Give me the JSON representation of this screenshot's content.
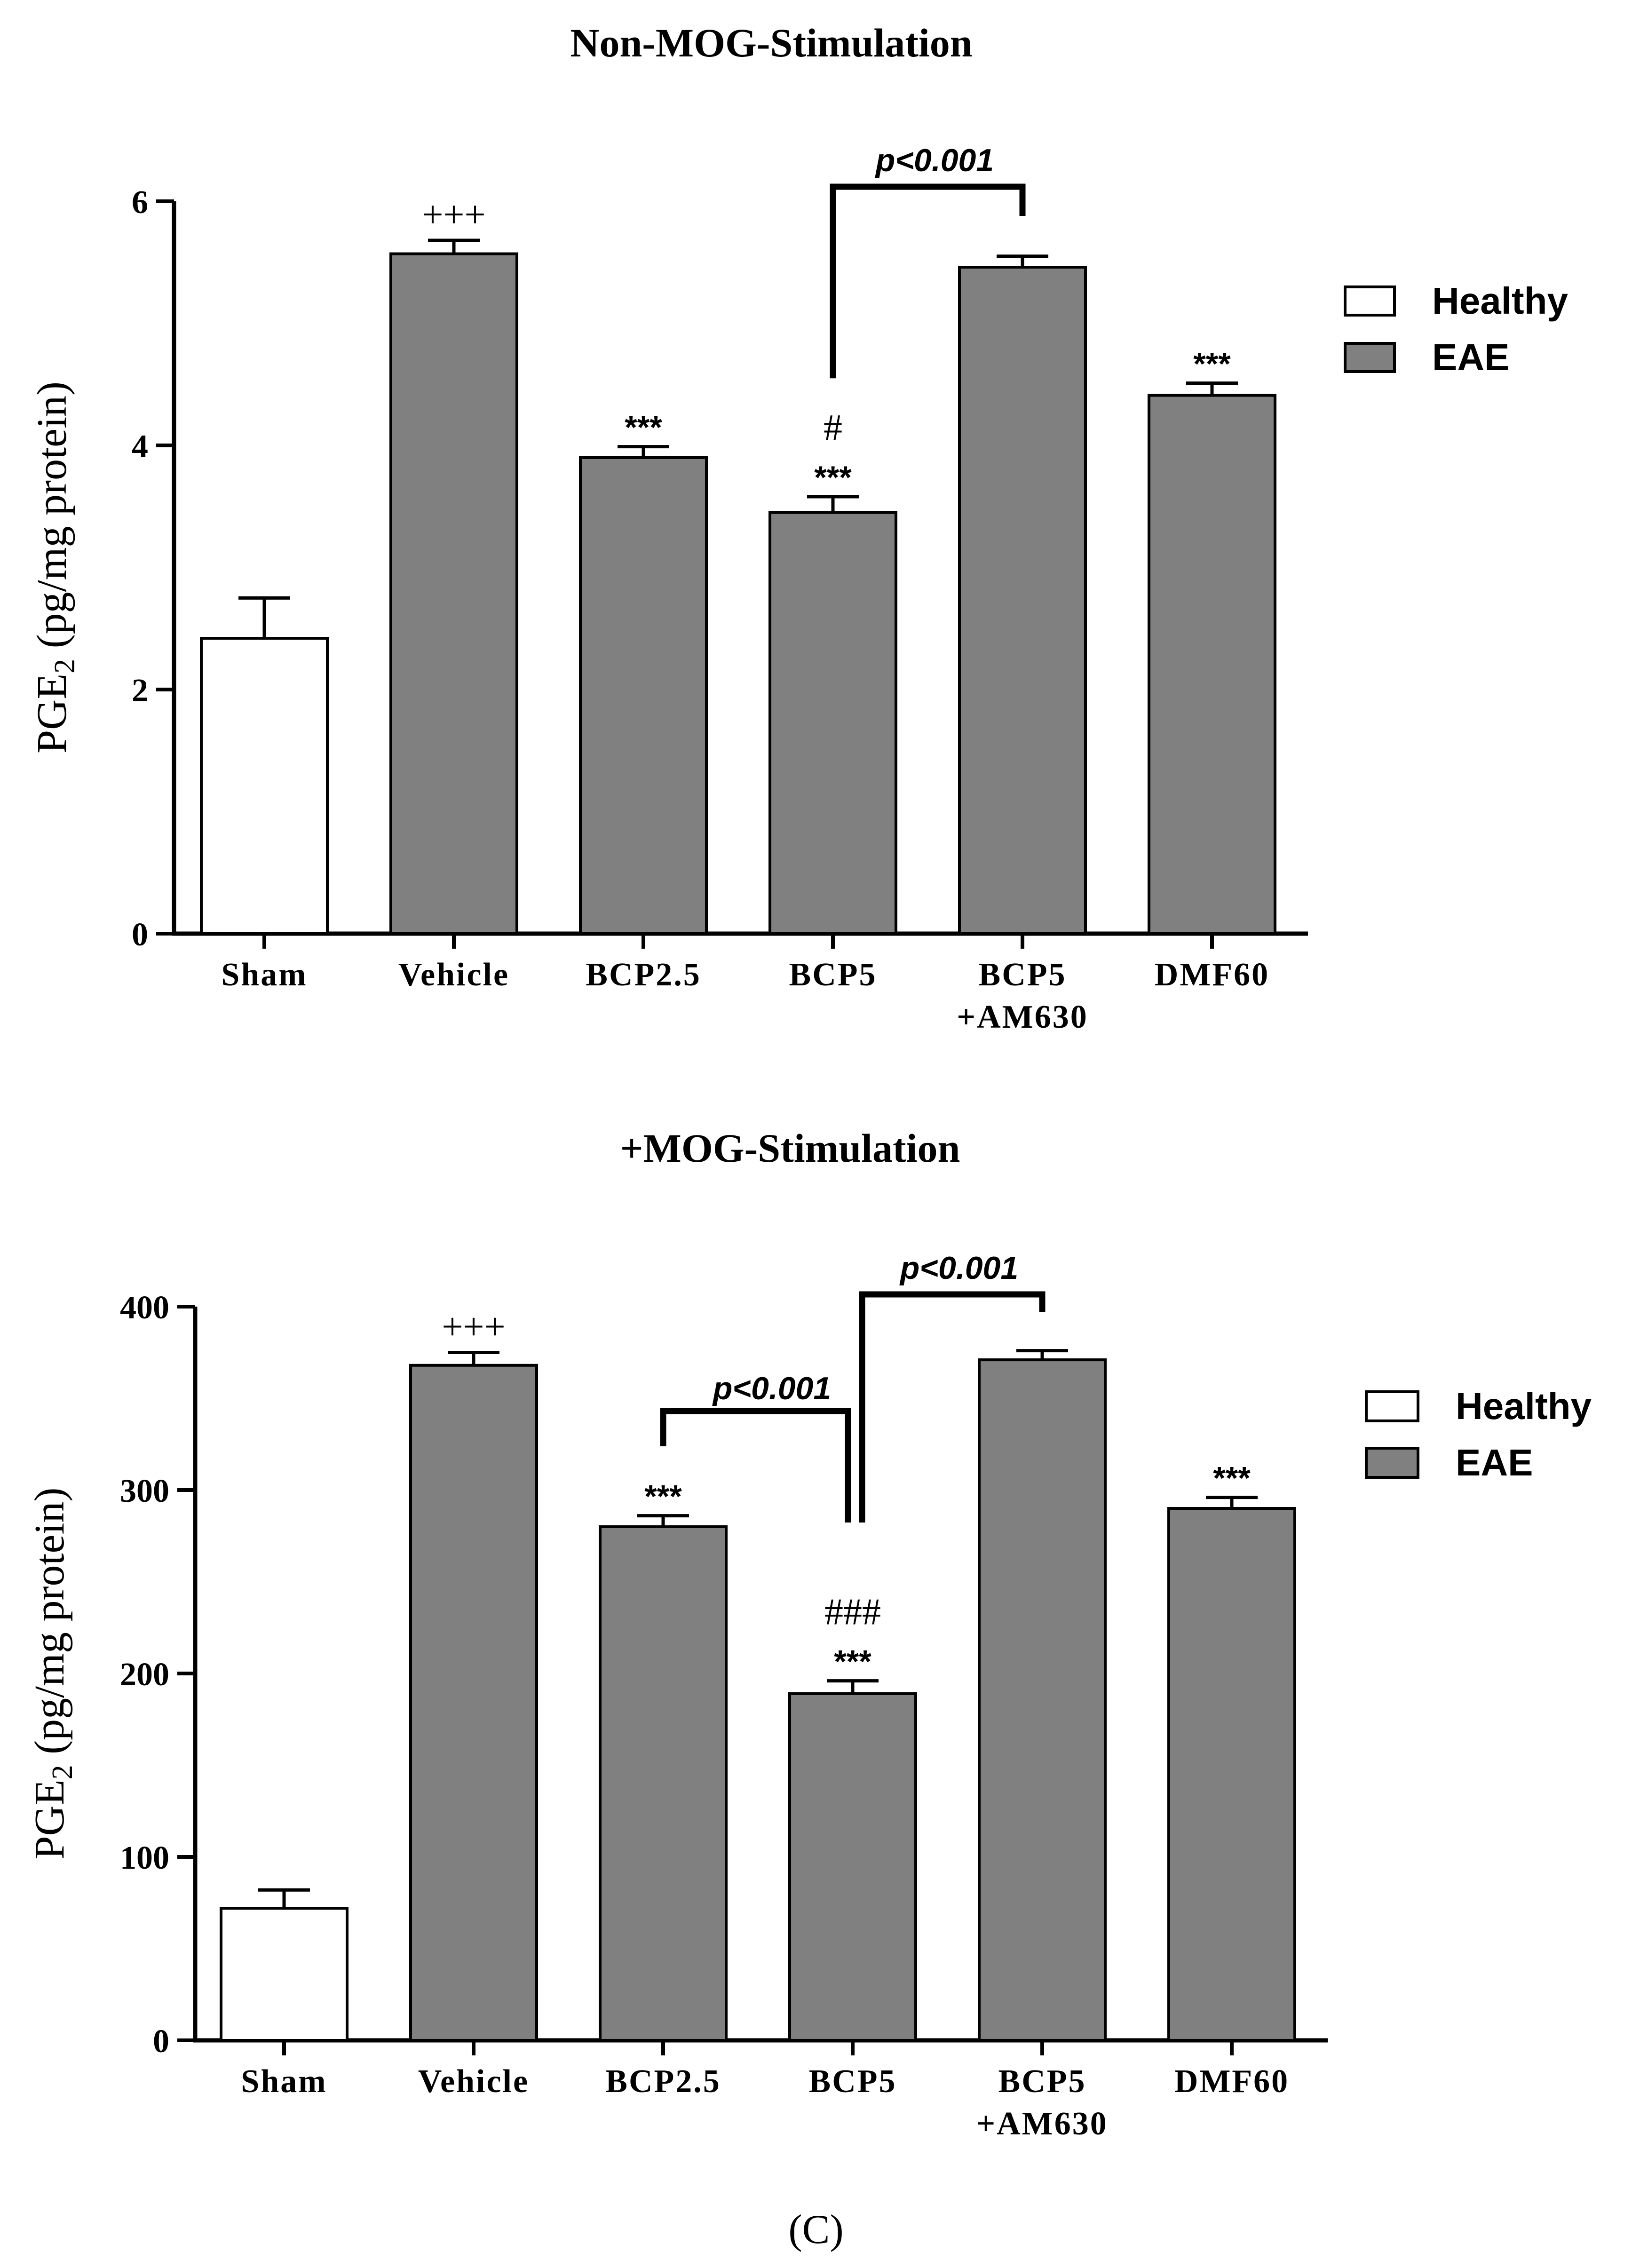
{
  "figure": {
    "panel_label": "(C)"
  },
  "chart_data": [
    {
      "type": "bar",
      "title": "Non-MOG-Stimulation",
      "xlabel": "",
      "ylabel": "PGE2 (pg/mg protein)",
      "ylabel_main": "PGE",
      "ylabel_sub": "2",
      "ylabel_rest": " (pg/mg protein)",
      "ylim": [
        0,
        6
      ],
      "yticks": [
        0,
        2,
        4,
        6
      ],
      "ytick_labels": [
        "0",
        "2",
        "4",
        "6"
      ],
      "categories": [
        [
          "Sham"
        ],
        [
          "Vehicle"
        ],
        [
          "BCP2.5"
        ],
        [
          "BCP5"
        ],
        [
          "BCP5",
          "+AM630"
        ],
        [
          "DMF60"
        ]
      ],
      "values": [
        2.42,
        5.57,
        3.9,
        3.45,
        5.46,
        4.41
      ],
      "errors": [
        0.33,
        0.11,
        0.09,
        0.13,
        0.09,
        0.1
      ],
      "groups": [
        "Healthy",
        "EAE",
        "EAE",
        "EAE",
        "EAE",
        "EAE"
      ],
      "annotations": [
        {
          "bar": 1,
          "lines": [
            "+++"
          ]
        },
        {
          "bar": 2,
          "lines": [
            "***"
          ]
        },
        {
          "bar": 3,
          "lines": [
            "#",
            "***"
          ]
        },
        {
          "bar": 5,
          "lines": [
            "***"
          ]
        }
      ],
      "brackets": [
        {
          "from": 3,
          "to": 4,
          "label": "p<0.001"
        }
      ],
      "legend": [
        {
          "label": "Healthy",
          "color": "#ffffff"
        },
        {
          "label": "EAE",
          "color": "#808080"
        }
      ],
      "legend_position": "top-right"
    },
    {
      "type": "bar",
      "title": "+MOG-Stimulation",
      "xlabel": "",
      "ylabel": "PGE2 (pg/mg protein)",
      "ylabel_main": "PGE",
      "ylabel_sub": "2",
      "ylabel_rest": " (pg/mg protein)",
      "ylim": [
        0,
        400
      ],
      "yticks": [
        0,
        100,
        200,
        300,
        400
      ],
      "ytick_labels": [
        "0",
        "100",
        "200",
        "300",
        "400"
      ],
      "categories": [
        [
          "Sham"
        ],
        [
          "Vehicle"
        ],
        [
          "BCP2.5"
        ],
        [
          "BCP5"
        ],
        [
          "BCP5",
          "+AM630"
        ],
        [
          "DMF60"
        ]
      ],
      "values": [
        72,
        368,
        280,
        189,
        371,
        290
      ],
      "errors": [
        10,
        7,
        6,
        7,
        5,
        6
      ],
      "groups": [
        "Healthy",
        "EAE",
        "EAE",
        "EAE",
        "EAE",
        "EAE"
      ],
      "annotations": [
        {
          "bar": 1,
          "lines": [
            "+++"
          ]
        },
        {
          "bar": 2,
          "lines": [
            "***"
          ]
        },
        {
          "bar": 3,
          "lines": [
            "###",
            "***"
          ]
        },
        {
          "bar": 5,
          "lines": [
            "***"
          ]
        }
      ],
      "brackets": [
        {
          "from": 2,
          "to": 3,
          "label": "p<0.001"
        },
        {
          "from": 3,
          "to": 4,
          "label": "p<0.001"
        }
      ],
      "legend": [
        {
          "label": "Healthy",
          "color": "#ffffff"
        },
        {
          "label": "EAE",
          "color": "#808080"
        }
      ],
      "legend_position": "top-right"
    }
  ]
}
